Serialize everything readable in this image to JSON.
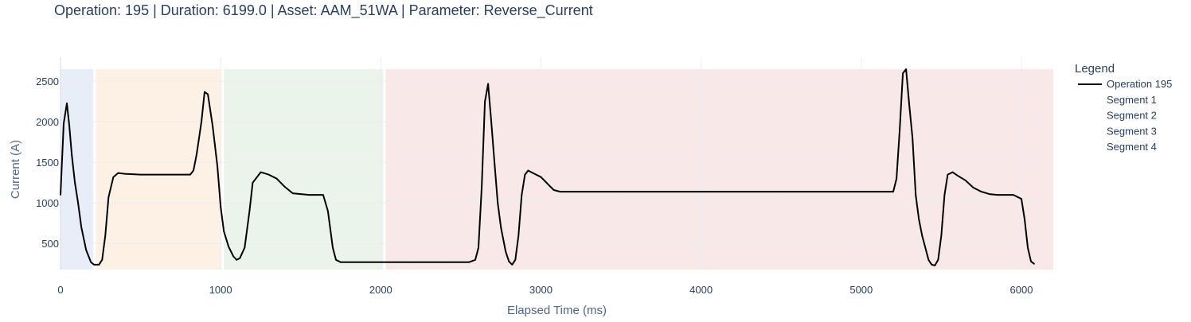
{
  "title": "Operation: 195 | Duration: 6199.0 | Asset: AAM_51WA | Parameter: Reverse_Current",
  "chart_data": {
    "type": "line",
    "title": "Operation: 195 | Duration: 6199.0 | Asset: AAM_51WA | Parameter: Reverse_Current",
    "xlabel": "Elapsed Time (ms)",
    "ylabel": "Current (A)",
    "xlim": [
      0,
      6199
    ],
    "ylim": [
      180,
      2650
    ],
    "x_ticks": [
      0,
      1000,
      2000,
      3000,
      4000,
      5000,
      6000
    ],
    "x_tick_labels": [
      "0",
      "1000",
      "2000",
      "3000",
      "4000",
      "5000",
      "6000"
    ],
    "y_ticks": [
      500,
      1000,
      1500,
      2000,
      2500
    ],
    "y_tick_labels": [
      "500",
      "1000",
      "1500",
      "2000",
      "2500"
    ],
    "grid": true,
    "legend": {
      "title": "Legend",
      "position": "right"
    },
    "series": [
      {
        "name": "Operation 195",
        "color": "#000000",
        "x": [
          0,
          20,
          40,
          55,
          70,
          90,
          110,
          130,
          160,
          190,
          210,
          240,
          260,
          280,
          300,
          330,
          360,
          400,
          500,
          600,
          700,
          780,
          810,
          830,
          850,
          880,
          900,
          920,
          950,
          980,
          1000,
          1020,
          1050,
          1080,
          1100,
          1120,
          1150,
          1180,
          1200,
          1250,
          1300,
          1350,
          1400,
          1450,
          1500,
          1550,
          1600,
          1640,
          1670,
          1700,
          1720,
          1750,
          1800,
          2000,
          2200,
          2400,
          2550,
          2590,
          2610,
          2630,
          2650,
          2670,
          2690,
          2710,
          2730,
          2750,
          2780,
          2800,
          2820,
          2840,
          2860,
          2880,
          2900,
          2920,
          2950,
          3000,
          3050,
          3080,
          3120,
          3200,
          3500,
          4000,
          4500,
          5000,
          5200,
          5220,
          5240,
          5260,
          5280,
          5300,
          5320,
          5340,
          5360,
          5380,
          5400,
          5420,
          5440,
          5460,
          5480,
          5500,
          5520,
          5540,
          5570,
          5600,
          5650,
          5700,
          5750,
          5800,
          5850,
          5900,
          5950,
          6000,
          6020,
          6040,
          6060,
          6080
        ],
        "y": [
          1100,
          1980,
          2230,
          1950,
          1600,
          1250,
          1000,
          700,
          420,
          270,
          240,
          240,
          300,
          600,
          1070,
          1320,
          1370,
          1360,
          1350,
          1350,
          1350,
          1350,
          1350,
          1400,
          1600,
          2000,
          2370,
          2340,
          1950,
          1450,
          950,
          650,
          460,
          340,
          300,
          320,
          450,
          900,
          1250,
          1380,
          1350,
          1300,
          1200,
          1120,
          1110,
          1100,
          1100,
          1100,
          900,
          450,
          300,
          270,
          270,
          270,
          270,
          270,
          270,
          300,
          450,
          1200,
          2250,
          2470,
          2000,
          1500,
          1000,
          700,
          400,
          280,
          240,
          300,
          600,
          1100,
          1350,
          1400,
          1370,
          1320,
          1220,
          1160,
          1140,
          1140,
          1140,
          1140,
          1140,
          1140,
          1140,
          1300,
          1900,
          2600,
          2650,
          2200,
          1800,
          1100,
          800,
          600,
          450,
          300,
          240,
          230,
          300,
          600,
          1100,
          1350,
          1380,
          1340,
          1280,
          1190,
          1140,
          1110,
          1100,
          1100,
          1100,
          1050,
          800,
          450,
          280,
          250
        ]
      },
      {
        "name": "Segment 1",
        "x_range": [
          0,
          205
        ],
        "color": "#e8eef7"
      },
      {
        "name": "Segment 2",
        "x_range": [
          220,
          1005
        ],
        "color": "#fdf1e6"
      },
      {
        "name": "Segment 3",
        "x_range": [
          1020,
          2015
        ],
        "color": "#eaf4ea"
      },
      {
        "name": "Segment 4",
        "x_range": [
          2030,
          6199
        ],
        "color": "#f9e8e8"
      }
    ]
  }
}
